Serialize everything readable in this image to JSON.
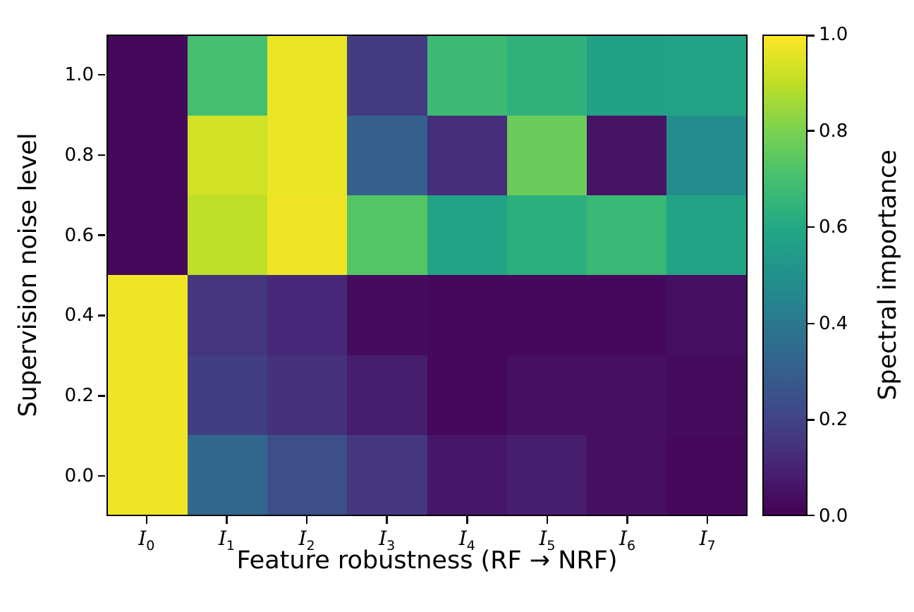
{
  "figure": {
    "background": "#ffffff",
    "text_color": "#000000"
  },
  "chart_data": {
    "type": "heatmap",
    "title": "",
    "xlabel": "Feature robustness (RF → NRF)",
    "ylabel": "Supervision noise level",
    "colorbar_label": "Spectral importance",
    "colormap": "viridis",
    "viridis_stops": [
      "#440154",
      "#482475",
      "#414487",
      "#355f8d",
      "#2a788e",
      "#21918c",
      "#22a884",
      "#44bf70",
      "#7ad151",
      "#bddf26",
      "#fde725"
    ],
    "vmin": 0.0,
    "vmax": 1.0,
    "x_ticklabels": [
      {
        "base": "I",
        "sub": "0"
      },
      {
        "base": "I",
        "sub": "1"
      },
      {
        "base": "I",
        "sub": "2"
      },
      {
        "base": "I",
        "sub": "3"
      },
      {
        "base": "I",
        "sub": "4"
      },
      {
        "base": "I",
        "sub": "5"
      },
      {
        "base": "I",
        "sub": "6"
      },
      {
        "base": "I",
        "sub": "7"
      }
    ],
    "y_ticklabels": [
      "1.0",
      "0.8",
      "0.6",
      "0.4",
      "0.2",
      "0.0"
    ],
    "colorbar_ticklabels": [
      "1.0",
      "0.8",
      "0.6",
      "0.4",
      "0.2",
      "0.0"
    ],
    "rows": [
      {
        "y": 1.0,
        "values": [
          0.02,
          0.7,
          0.97,
          0.17,
          0.68,
          0.64,
          0.57,
          0.58
        ]
      },
      {
        "y": 0.8,
        "values": [
          0.02,
          0.93,
          0.97,
          0.3,
          0.13,
          0.77,
          0.05,
          0.48
        ]
      },
      {
        "y": 0.6,
        "values": [
          0.02,
          0.9,
          0.98,
          0.73,
          0.58,
          0.63,
          0.67,
          0.58
        ]
      },
      {
        "y": 0.4,
        "values": [
          0.98,
          0.15,
          0.11,
          0.03,
          0.02,
          0.02,
          0.02,
          0.04
        ]
      },
      {
        "y": 0.2,
        "values": [
          0.98,
          0.18,
          0.14,
          0.08,
          0.02,
          0.04,
          0.04,
          0.03
        ]
      },
      {
        "y": 0.0,
        "values": [
          0.98,
          0.33,
          0.24,
          0.16,
          0.06,
          0.08,
          0.04,
          0.02
        ]
      }
    ]
  }
}
